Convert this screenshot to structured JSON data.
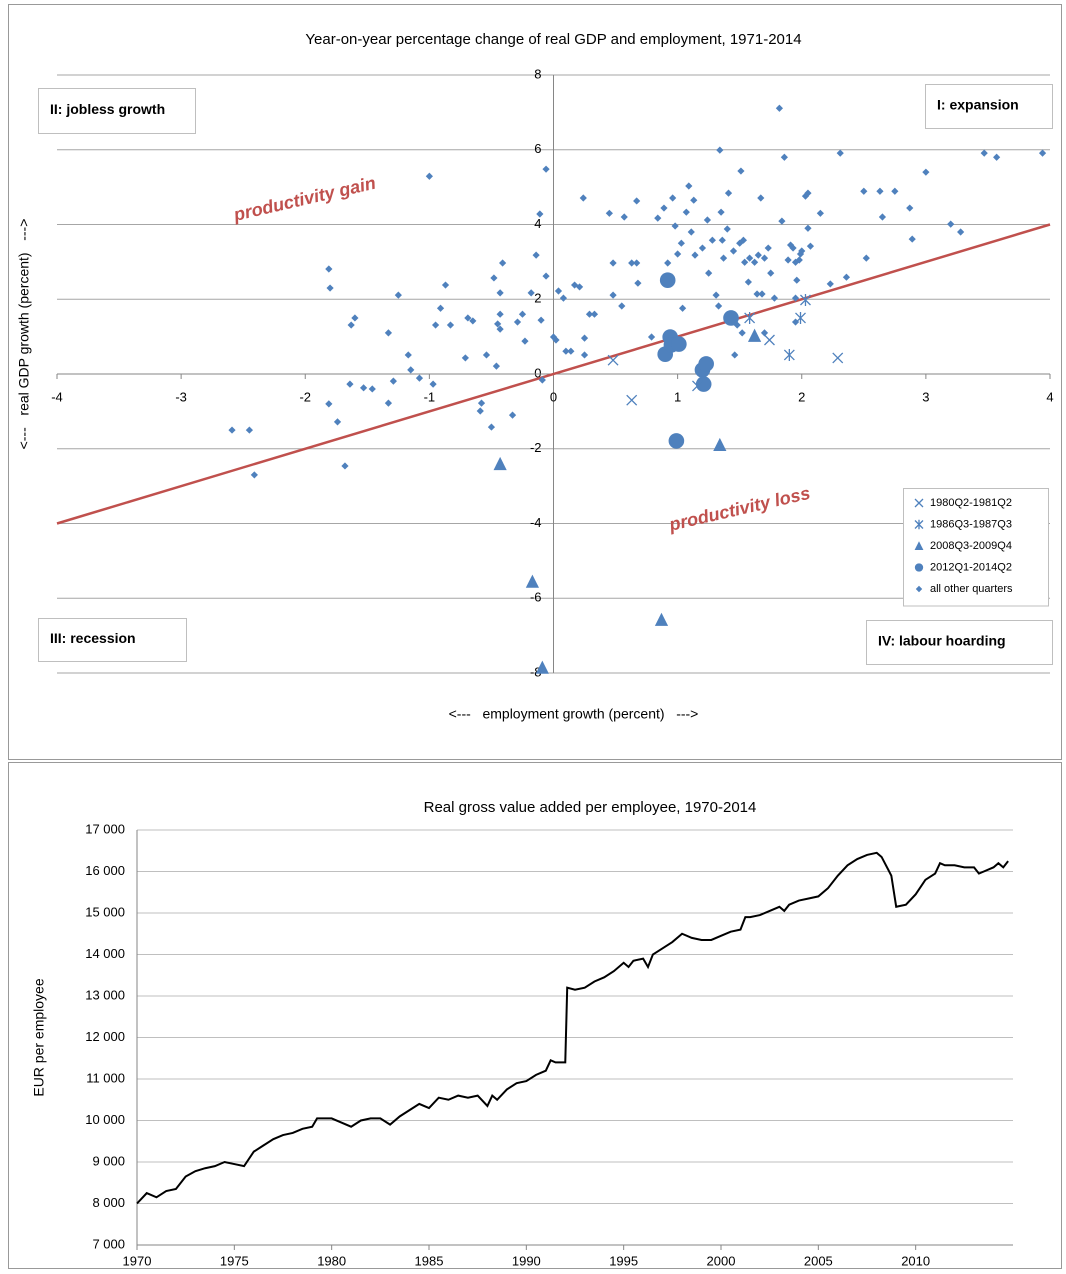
{
  "chart_data": [
    {
      "type": "scatter",
      "title": "Year-on-year percentage change of real GDP and employment, 1971-2014",
      "x_label": "<---   employment growth (percent)   --->",
      "y_label": "<---   real GDP growth (percent)   --->",
      "xlim": [
        -4,
        4
      ],
      "ylim": [
        -8,
        8
      ],
      "xticks": [
        -4,
        -3,
        -2,
        -1,
        0,
        1,
        2,
        3,
        4
      ],
      "yticks": [
        -8,
        -6,
        -4,
        -2,
        0,
        2,
        4,
        6,
        8
      ],
      "grid": true,
      "legend": "lower right",
      "quadrant_labels": [
        "II: jobless growth",
        "I: expansion",
        "III: recession",
        "IV: labour hoarding"
      ],
      "annotations": [
        {
          "text": "productivity gain",
          "color": "#c0504d"
        },
        {
          "text": "productivity loss",
          "color": "#c0504d"
        }
      ],
      "reference_line": {
        "x": [
          -4,
          4
        ],
        "y": [
          -4,
          4
        ],
        "color": "#c0504d"
      },
      "series": [
        {
          "name": "1980Q2-1981Q2",
          "marker": "x",
          "color": "#4f81bd",
          "x": [
            0.48,
            0.63,
            1.16,
            1.74,
            2.29
          ],
          "y": [
            0.37,
            -0.7,
            -0.32,
            0.91,
            0.43
          ]
        },
        {
          "name": "1986Q3-1987Q3",
          "marker": "asterisk",
          "color": "#4f81bd",
          "x": [
            1.58,
            1.9,
            1.99,
            2.03
          ],
          "y": [
            1.5,
            0.51,
            1.5,
            1.98
          ]
        },
        {
          "name": "2008Q3-2009Q4",
          "marker": "triangle",
          "color": "#4f81bd",
          "x": [
            -0.43,
            -0.17,
            -0.09,
            0.87,
            1.34,
            1.62
          ],
          "y": [
            -2.41,
            -5.56,
            -7.86,
            -6.58,
            -1.9,
            1.02
          ]
        },
        {
          "name": "2012Q1-2014Q2",
          "marker": "circle",
          "color": "#4f81bd",
          "x": [
            0.92,
            0.94,
            0.9,
            0.95,
            1.01,
            0.99,
            1.2,
            1.23,
            1.21,
            1.43
          ],
          "y": [
            2.51,
            0.99,
            0.53,
            0.78,
            0.8,
            -1.79,
            0.11,
            0.27,
            -0.27,
            1.5
          ]
        },
        {
          "name": "all other quarters",
          "marker": "diamond",
          "color": "#4f81bd",
          "x": [
            -2.59,
            -2.45,
            -2.41,
            -1.81,
            -1.8,
            -1.81,
            -1.74,
            -1.68,
            -1.63,
            -1.6,
            -1.64,
            -1.53,
            -1.46,
            -1.33,
            -1.33,
            -1.29,
            -1.25,
            -1.17,
            -1.15,
            -1.08,
            -1.0,
            -0.97,
            -0.95,
            -0.91,
            -0.87,
            -0.83,
            -0.71,
            -0.69,
            -0.65,
            -0.59,
            -0.58,
            -0.54,
            -0.5,
            -0.48,
            -0.46,
            -0.45,
            -0.43,
            -0.43,
            -0.41,
            -0.43,
            -0.33,
            -0.29,
            -0.25,
            -0.23,
            -0.18,
            -0.14,
            -0.11,
            -0.1,
            -0.09,
            -0.06,
            -0.06,
            0.0,
            0.02,
            0.04,
            0.08,
            0.1,
            0.14,
            0.17,
            0.21,
            0.24,
            0.25,
            0.25,
            0.29,
            0.33,
            0.45,
            0.48,
            0.48,
            0.55,
            0.57,
            0.63,
            0.67,
            0.67,
            0.68,
            0.79,
            0.84,
            0.89,
            0.92,
            0.96,
            0.98,
            1.0,
            1.03,
            1.04,
            1.07,
            1.09,
            1.11,
            1.13,
            1.14,
            1.2,
            1.24,
            1.25,
            1.28,
            1.31,
            1.33,
            1.34,
            1.35,
            1.36,
            1.37,
            1.4,
            1.41,
            1.45,
            1.46,
            1.48,
            1.5,
            1.51,
            1.52,
            1.53,
            1.54,
            1.57,
            1.58,
            1.62,
            1.64,
            1.65,
            1.67,
            1.68,
            1.7,
            1.7,
            1.73,
            1.75,
            1.78,
            1.82,
            1.84,
            1.86,
            1.89,
            1.91,
            1.93,
            1.95,
            1.95,
            1.95,
            1.96,
            1.98,
            1.99,
            2.0,
            2.03,
            2.05,
            2.05,
            2.07,
            2.15,
            2.23,
            2.31,
            2.36,
            2.52,
            2.5,
            2.63,
            2.65,
            2.75,
            2.87,
            2.89,
            3.0,
            3.2,
            3.28,
            3.47,
            3.57,
            3.94
          ],
          "y": [
            -1.5,
            -1.5,
            -2.7,
            2.81,
            2.3,
            -0.8,
            -1.28,
            -2.46,
            1.31,
            1.5,
            -0.27,
            -0.37,
            -0.4,
            1.1,
            -0.78,
            -0.19,
            2.11,
            0.51,
            0.11,
            -0.11,
            5.29,
            -0.27,
            1.31,
            1.76,
            2.38,
            1.31,
            0.43,
            1.5,
            1.42,
            -0.99,
            -0.78,
            0.51,
            -1.42,
            2.57,
            0.21,
            1.34,
            1.2,
            2.17,
            2.97,
            1.6,
            -1.1,
            1.39,
            1.6,
            0.88,
            2.17,
            3.18,
            4.28,
            1.44,
            -0.16,
            5.48,
            2.62,
            0.99,
            0.91,
            2.22,
            2.03,
            0.61,
            0.61,
            2.38,
            2.33,
            4.71,
            0.96,
            0.51,
            1.6,
            1.6,
            4.3,
            2.11,
            2.97,
            1.82,
            4.2,
            2.97,
            4.63,
            2.97,
            2.43,
            0.99,
            4.17,
            4.44,
            2.97,
            4.71,
            3.96,
            3.21,
            3.5,
            1.76,
            4.33,
            5.03,
            3.8,
            4.65,
            3.18,
            3.37,
            4.12,
            2.7,
            3.58,
            2.11,
            1.82,
            5.99,
            4.33,
            3.58,
            3.1,
            3.88,
            4.84,
            3.29,
            0.51,
            1.31,
            3.5,
            5.43,
            1.1,
            3.58,
            2.99,
            2.46,
            3.1,
            2.99,
            2.14,
            3.18,
            4.71,
            2.14,
            3.1,
            1.1,
            3.37,
            2.7,
            2.03,
            7.11,
            4.09,
            5.8,
            3.05,
            3.45,
            3.37,
            2.99,
            2.03,
            1.39,
            2.51,
            3.05,
            3.21,
            3.29,
            4.76,
            3.9,
            4.84,
            3.42,
            4.3,
            2.41,
            5.91,
            2.59,
            3.1,
            4.89,
            4.89,
            4.2,
            4.89,
            4.44,
            3.61,
            5.4,
            4.01,
            3.8,
            5.91,
            5.8,
            5.91
          ]
        }
      ]
    },
    {
      "type": "line",
      "title": "Real gross value added per employee, 1970-2014",
      "y_label": "EUR per employee",
      "xlim": [
        1970,
        2015
      ],
      "ylim": [
        7000,
        17000
      ],
      "xticks": [
        1970,
        1975,
        1980,
        1985,
        1990,
        1995,
        2000,
        2005,
        2010
      ],
      "yticks": [
        {
          "value": 7000,
          "label": "7 000"
        },
        {
          "value": 8000,
          "label": "8 000"
        },
        {
          "value": 9000,
          "label": "9 000"
        },
        {
          "value": 10000,
          "label": "10 000"
        },
        {
          "value": 11000,
          "label": "11 000"
        },
        {
          "value": 12000,
          "label": "12 000"
        },
        {
          "value": 13000,
          "label": "13 000"
        },
        {
          "value": 14000,
          "label": "14 000"
        },
        {
          "value": 15000,
          "label": "15 000"
        },
        {
          "value": 16000,
          "label": "16 000"
        },
        {
          "value": 17000,
          "label": "17 000"
        }
      ],
      "grid": true,
      "color": "#000000",
      "x": [
        1970,
        1970.5,
        1971,
        1971.5,
        1972,
        1972.5,
        1973,
        1973.5,
        1974,
        1974.5,
        1975,
        1975.5,
        1976,
        1976.5,
        1977,
        1977.5,
        1978,
        1978.5,
        1979,
        1979.25,
        1980,
        1980.5,
        1981,
        1981.5,
        1982,
        1982.5,
        1983,
        1983.5,
        1984,
        1984.5,
        1985,
        1985.5,
        1986,
        1986.5,
        1987,
        1987.5,
        1988,
        1988.25,
        1988.5,
        1989,
        1989.5,
        1990,
        1990.5,
        1991,
        1991.25,
        1991.5,
        1992,
        1992.1,
        1992.5,
        1993,
        1993.5,
        1994,
        1994.5,
        1995,
        1995.25,
        1995.5,
        1996,
        1996.25,
        1996.5,
        1997,
        1997.5,
        1998,
        1998.5,
        1999,
        1999.5,
        2000,
        2000.5,
        2001,
        2001.25,
        2001.5,
        2002,
        2002.5,
        2003,
        2003.25,
        2003.5,
        2004,
        2004.5,
        2005,
        2005.5,
        2006,
        2006.5,
        2007,
        2007.5,
        2008,
        2008.25,
        2008.75,
        2009,
        2009.5,
        2010,
        2010.5,
        2011,
        2011.25,
        2011.5,
        2012,
        2012.5,
        2013,
        2013.25,
        2013.5,
        2014,
        2014.25,
        2014.5,
        2014.75
      ],
      "values": [
        8000,
        8250,
        8150,
        8300,
        8350,
        8650,
        8780,
        8850,
        8900,
        9000,
        8950,
        8900,
        9250,
        9400,
        9550,
        9650,
        9700,
        9800,
        9850,
        10050,
        10050,
        9950,
        9850,
        10000,
        10050,
        10050,
        9900,
        10100,
        10250,
        10400,
        10300,
        10550,
        10500,
        10600,
        10550,
        10600,
        10350,
        10600,
        10500,
        10750,
        10900,
        10950,
        11100,
        11200,
        11450,
        11400,
        11400,
        13200,
        13150,
        13200,
        13350,
        13450,
        13600,
        13800,
        13700,
        13850,
        13900,
        13700,
        14000,
        14150,
        14300,
        14500,
        14400,
        14350,
        14350,
        14450,
        14550,
        14600,
        14900,
        14900,
        14950,
        15050,
        15150,
        15050,
        15200,
        15300,
        15350,
        15400,
        15600,
        15900,
        16150,
        16300,
        16400,
        16450,
        16350,
        15900,
        15150,
        15200,
        15450,
        15800,
        15950,
        16200,
        16150,
        16150,
        16100,
        16100,
        15950,
        16000,
        16100,
        16200,
        16100,
        16250
      ]
    }
  ]
}
